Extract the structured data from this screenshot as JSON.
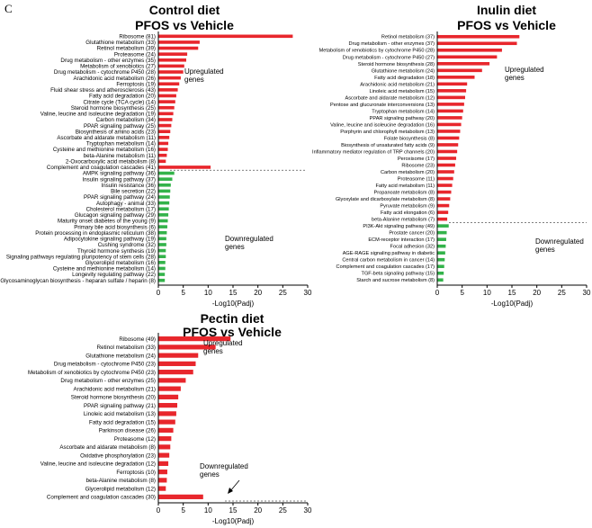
{
  "figure_label": "C",
  "colors": {
    "up": "#e8262c",
    "down": "#33b34a",
    "axis": "#000000",
    "divider": "#555555"
  },
  "chart_data": [
    {
      "type": "bar",
      "orientation": "horizontal",
      "title": [
        "Control diet",
        "PFOS vs Vehicle"
      ],
      "xlabel": "-Log10(Padj)",
      "xlim": [
        0,
        30
      ],
      "xticks": [
        0,
        5,
        10,
        15,
        20,
        25,
        30
      ],
      "up_label": "Upregulated genes",
      "down_label": "Downregulated genes",
      "up_count": 23,
      "categories": [
        "Ribosome (81)",
        "Glutathione metabolism (33)",
        "Retinol metabolism (39)",
        "Proteasome (24)",
        "Drug metabolism - other enzymes (35)",
        "Metabolism of xenobiotics (27)",
        "Drug metabolism - cytochrome P450 (28)",
        "Arachidonic acid metabolism (26)",
        "Ferroptosis (19)",
        "Fluid shear stress and atherosclerosis (43)",
        "Fatty acid degradation (20)",
        "Citrate cycle (TCA cycle) (14)",
        "Steroid hormone biosynthesis (25)",
        "Valine, leucine and isoleucine degradation (19)",
        "Carbon metabolism (34)",
        "PPAR signaling pathway (25)",
        "Biosynthesis of amino acids (23)",
        "Ascorbate and aldarate metabolism (11)",
        "Tryptophan metabolism (14)",
        "Cysteine and methionine metabolism (16)",
        "beta-Alanine metabolism (11)",
        "2-Oxocarboxylic acid metabolism (8)",
        "Complement and coagulation cascades (41)",
        "AMPK signaling pathway (36)",
        "Insulin signaling pathway (37)",
        "Insulin resistance (36)",
        "Bile secretion (22)",
        "PPAR signaling pathway (24)",
        "Autophagy - animal (33)",
        "Cholesterol metabolism (17)",
        "Glucagon signaling pathway (29)",
        "Maturity onset diabetes of the young (9)",
        "Primary bile acid biosynthesis (6)",
        "Protein processing in endoplasmic reticulum (38)",
        "Adipocytokine signaling pathway (19)",
        "Cushing syndrome (32)",
        "Thyroid hormone synthesis (19)",
        "Signaling pathways regulating pluripotency of stem cells (28)",
        "Glycerolipid metabolism (16)",
        "Cysteine and methionine metabolism (14)",
        "Longevity regulating pathway (22)",
        "Glycosaminoglycan biosynthesis - heparan sulfate / heparin (8)"
      ],
      "values": [
        27,
        8.3,
        8.0,
        5.8,
        5.6,
        5.2,
        5.0,
        4.5,
        4.2,
        3.9,
        3.6,
        3.4,
        3.2,
        3.0,
        2.8,
        2.6,
        2.4,
        2.2,
        2.0,
        1.9,
        1.7,
        1.5,
        10.5,
        3.2,
        2.8,
        2.5,
        2.4,
        2.3,
        2.2,
        2.1,
        2.0,
        1.9,
        1.8,
        1.7,
        1.6,
        1.6,
        1.5,
        1.5,
        1.4,
        1.4,
        1.3,
        1.3
      ]
    },
    {
      "type": "bar",
      "orientation": "horizontal",
      "title": [
        "Inulin diet",
        "PFOS vs Vehicle"
      ],
      "xlabel": "-Log10(Padj)",
      "xlim": [
        0,
        30
      ],
      "xticks": [
        0,
        5,
        10,
        15,
        20,
        25,
        30
      ],
      "up_label": "Upregulated genes",
      "down_label": "Downregulated genes",
      "up_count": 28,
      "categories": [
        "Retinol metabolism (37)",
        "Drug metabolism - other enzymes (37)",
        "Metabolism of xenobiotics by cytochrome P450 (28)",
        "Drug metabolism - cytochrome P450 (27)",
        "Steroid hormone biosynthesis (28)",
        "Glutathione metabolism (24)",
        "Fatty acid degradation (18)",
        "Arachidonic acid metabolism (21)",
        "Linoleic acid metabolism (15)",
        "Ascorbate and aldarate metabolism (12)",
        "Pentose and glucuronate interconversions (13)",
        "Tryptophan metabolism (14)",
        "PPAR signaling pathway (20)",
        "Valine, leucine and isoleucine degradation (16)",
        "Porphyrin and chlorophyll metabolism (13)",
        "Folate biosynthesis (8)",
        "Biosynthesis of unsaturated fatty acids (9)",
        "Inflammatory mediator regulation of TRP channels (20)",
        "Peroxisome (17)",
        "Ribosome (23)",
        "Carbon metabolism (20)",
        "Proteasome (11)",
        "Fatty acid metabolism (11)",
        "Propanoate metabolism (8)",
        "Glyoxylate and dicarboxylate metabolism (8)",
        "Pyruvate metabolism (9)",
        "Fatty acid elongation (6)",
        "beta-Alanine metabolism (7)",
        "PI3K-Akt signaling pathway (49)",
        "Prostate cancer (20)",
        "ECM-receptor interaction (17)",
        "Focal adhesion (32)",
        "AGE-RAGE signaling pathway in diabetic",
        "Central carbon metabolism in cancer (14)",
        "Complement and coagulation cascades (17)",
        "TGF-beta signaling pathway (15)",
        "Starch and sucrose metabolism (8)"
      ],
      "values": [
        16.5,
        16.0,
        13.0,
        12.0,
        10.5,
        9.0,
        7.5,
        6.0,
        5.8,
        5.6,
        5.4,
        5.2,
        5.0,
        4.8,
        4.6,
        4.4,
        4.2,
        4.0,
        3.8,
        3.6,
        3.4,
        3.2,
        3.0,
        2.8,
        2.6,
        2.4,
        2.2,
        2.0,
        2.3,
        1.9,
        1.8,
        1.7,
        1.6,
        1.5,
        1.4,
        1.3,
        1.2
      ]
    },
    {
      "type": "bar",
      "orientation": "horizontal",
      "title": [
        "Pectin diet",
        "PFOS vs Vehicle"
      ],
      "xlabel": "-Log10(Padj)",
      "xlim": [
        0,
        30
      ],
      "xticks": [
        0,
        5,
        10,
        15,
        20,
        25,
        30
      ],
      "up_label": "Upregulated genes",
      "down_label": "Downregulated genes",
      "up_count": 20,
      "categories": [
        "Ribosome (49)",
        "Retinol metabolism (33)",
        "Glutathione metabolism (24)",
        "Drug metabolism - cytochrome P450 (23)",
        "Metabolism of xenobiotics by cytochrome P450 (23)",
        "Drug metabolism - other enzymes (25)",
        "Arachidonic acid metabolism (21)",
        "Steroid hormone biosynthesis (20)",
        "PPAR signaling pathway (21)",
        "Linoleic acid metabolism (13)",
        "Fatty acid degradation (15)",
        "Parkinson disease (26)",
        "Proteasome (12)",
        "Ascorbate and aldarate metabolism (8)",
        "Oxidative phosphorylation (23)",
        "Valine, leucine and isoleucine degradation (12)",
        "Ferroptosis (10)",
        "beta-Alanine metabolism (8)",
        "Glycerolipid metabolism (12)",
        "Complement  and coagulation cascades (30)"
      ],
      "values": [
        14.5,
        11.5,
        8.0,
        7.5,
        7.0,
        5.5,
        4.5,
        4.0,
        3.8,
        3.6,
        3.4,
        3.0,
        2.6,
        2.4,
        2.2,
        2.0,
        1.8,
        1.7,
        1.5,
        9.0
      ]
    }
  ]
}
